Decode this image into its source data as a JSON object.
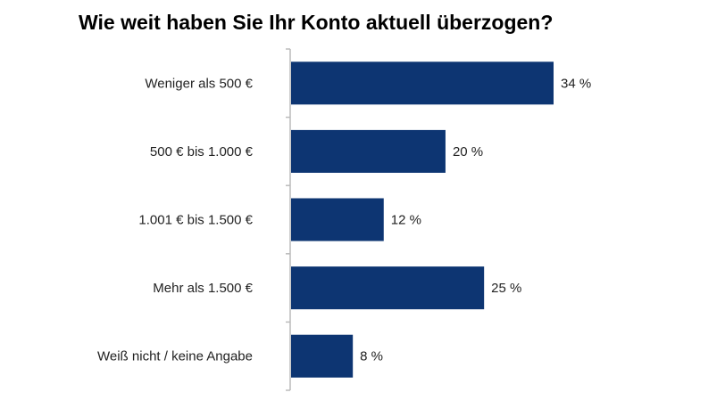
{
  "chart_data": {
    "type": "bar",
    "orientation": "horizontal",
    "title": "Wie weit haben Sie Ihr Konto aktuell überzogen?",
    "categories": [
      "Weniger als 500 €",
      "500 € bis 1.000 €",
      "1.001 € bis 1.500 €",
      "Mehr als 1.500 €",
      "Weiß nicht / keine Angabe"
    ],
    "values": [
      34,
      20,
      12,
      25,
      8
    ],
    "value_labels": [
      "34 %",
      "20 %",
      "12 %",
      "25 %",
      "8 %"
    ],
    "unit": "%",
    "xlim": [
      0,
      40
    ],
    "grid": false,
    "legend": "none",
    "bar_color": "#0d3572",
    "axis_color": "#bbbbbb"
  }
}
